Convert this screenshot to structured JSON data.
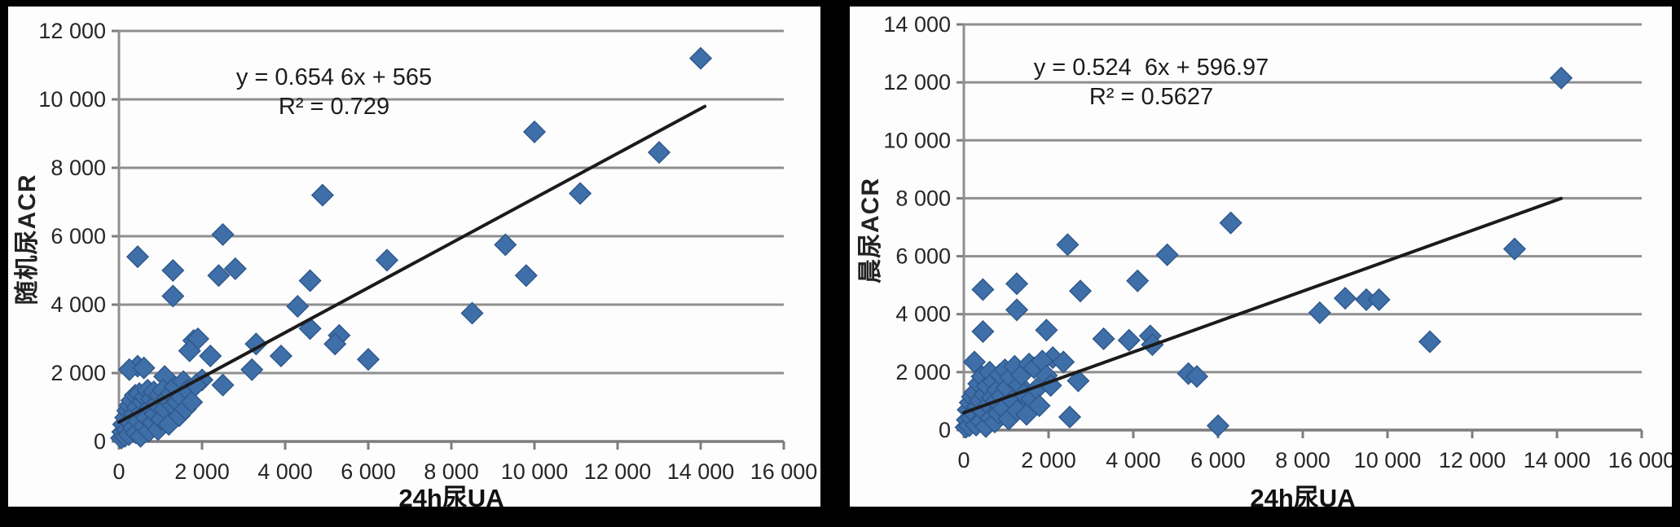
{
  "page": {
    "background_color": "#000000",
    "panel_color": "#fdfdfd"
  },
  "colors": {
    "marker_fill": "#3f6fa9",
    "marker_stroke": "#30598c",
    "gridline": "#8f8f8f",
    "axis_line": "#7d7d7d",
    "trend_line": "#1b1b1b",
    "tick_text": "#262626"
  },
  "chart_data": [
    {
      "id": "left",
      "type": "scatter",
      "title": "",
      "ylabel": "随机尿ACR",
      "xlabel": "24h尿UA",
      "equation": "y = 0.654 6x + 565",
      "r_squared": "R² = 0.729",
      "xlim": [
        0,
        16000
      ],
      "ylim": [
        0,
        12000
      ],
      "xticks": [
        0,
        2000,
        4000,
        6000,
        8000,
        10000,
        12000,
        14000,
        16000
      ],
      "yticks": [
        0,
        2000,
        4000,
        6000,
        8000,
        10000,
        12000
      ],
      "xtick_labels": [
        "0",
        "2 000",
        "4 000",
        "6 000",
        "8 000",
        "10 000",
        "12 000",
        "14 000",
        "16 000"
      ],
      "ytick_labels": [
        "0",
        "2 000",
        "4 000",
        "6 000",
        "8 000",
        "10 000",
        "12 000"
      ],
      "grid": "horizontal",
      "legend": "none",
      "trendline": {
        "x1": 0,
        "y1": 565,
        "x2": 14100,
        "y2": 9795
      },
      "points": [
        [
          14000,
          11200
        ],
        [
          10000,
          9050
        ],
        [
          13000,
          8450
        ],
        [
          11100,
          7250
        ],
        [
          4900,
          7200
        ],
        [
          2500,
          6050
        ],
        [
          9300,
          5750
        ],
        [
          450,
          5400
        ],
        [
          6450,
          5300
        ],
        [
          2800,
          5050
        ],
        [
          1300,
          5000
        ],
        [
          2400,
          4850
        ],
        [
          9800,
          4850
        ],
        [
          4600,
          4700
        ],
        [
          1300,
          4250
        ],
        [
          4300,
          3950
        ],
        [
          8500,
          3750
        ],
        [
          4600,
          3300
        ],
        [
          5300,
          3100
        ],
        [
          5200,
          2850
        ],
        [
          3300,
          2850
        ],
        [
          1800,
          2950
        ],
        [
          1900,
          3000
        ],
        [
          1700,
          2650
        ],
        [
          2200,
          2500
        ],
        [
          3900,
          2500
        ],
        [
          6000,
          2400
        ],
        [
          3200,
          2100
        ],
        [
          450,
          2200
        ],
        [
          250,
          2100
        ],
        [
          600,
          2150
        ],
        [
          1100,
          1900
        ],
        [
          2000,
          1800
        ],
        [
          2500,
          1650
        ],
        [
          60,
          100
        ],
        [
          90,
          280
        ],
        [
          110,
          500
        ],
        [
          140,
          150
        ],
        [
          160,
          700
        ],
        [
          190,
          350
        ],
        [
          210,
          900
        ],
        [
          240,
          200
        ],
        [
          260,
          1050
        ],
        [
          290,
          550
        ],
        [
          310,
          1200
        ],
        [
          340,
          400
        ],
        [
          360,
          800
        ],
        [
          390,
          1350
        ],
        [
          410,
          250
        ],
        [
          440,
          1000
        ],
        [
          470,
          600
        ],
        [
          490,
          1400
        ],
        [
          520,
          150
        ],
        [
          540,
          850
        ],
        [
          570,
          1150
        ],
        [
          600,
          450
        ],
        [
          630,
          1300
        ],
        [
          660,
          700
        ],
        [
          690,
          1500
        ],
        [
          720,
          300
        ],
        [
          750,
          1000
        ],
        [
          780,
          1250
        ],
        [
          810,
          550
        ],
        [
          840,
          1450
        ],
        [
          870,
          800
        ],
        [
          900,
          1100
        ],
        [
          940,
          350
        ],
        [
          980,
          1350
        ],
        [
          1020,
          650
        ],
        [
          1060,
          1500
        ],
        [
          1100,
          950
        ],
        [
          1150,
          1250
        ],
        [
          1200,
          500
        ],
        [
          1250,
          1400
        ],
        [
          1300,
          1050
        ],
        [
          1350,
          1600
        ],
        [
          1400,
          1150
        ],
        [
          1450,
          750
        ],
        [
          1500,
          1300
        ],
        [
          1550,
          1750
        ],
        [
          1600,
          950
        ],
        [
          1650,
          1500
        ],
        [
          1750,
          1150
        ],
        [
          1850,
          1650
        ]
      ]
    },
    {
      "id": "right",
      "type": "scatter",
      "title": "",
      "ylabel": "晨尿ACR",
      "xlabel": "24h尿UA",
      "equation": "y = 0.524  6x + 596.97",
      "r_squared": "R² = 0.5627",
      "xlim": [
        0,
        16000
      ],
      "ylim": [
        0,
        14000
      ],
      "xticks": [
        0,
        2000,
        4000,
        6000,
        8000,
        10000,
        12000,
        14000,
        16000
      ],
      "yticks": [
        0,
        2000,
        4000,
        6000,
        8000,
        10000,
        12000,
        14000
      ],
      "xtick_labels": [
        "0",
        "2 000",
        "4 000",
        "6 000",
        "8 000",
        "10 000",
        "12 000",
        "14 000",
        "16 000"
      ],
      "ytick_labels": [
        "0",
        "2 000",
        "4 000",
        "6 000",
        "8 000",
        "10 000",
        "12 000",
        "14 000"
      ],
      "grid": "horizontal",
      "legend": "none",
      "trendline": {
        "x1": 0,
        "y1": 597,
        "x2": 14100,
        "y2": 7994
      },
      "points": [
        [
          14100,
          12150
        ],
        [
          6300,
          7150
        ],
        [
          2450,
          6400
        ],
        [
          4800,
          6050
        ],
        [
          13000,
          6250
        ],
        [
          4100,
          5150
        ],
        [
          1250,
          5050
        ],
        [
          450,
          4850
        ],
        [
          2750,
          4800
        ],
        [
          9000,
          4550
        ],
        [
          9500,
          4500
        ],
        [
          9800,
          4500
        ],
        [
          1250,
          4150
        ],
        [
          8400,
          4050
        ],
        [
          450,
          3400
        ],
        [
          1950,
          3450
        ],
        [
          3300,
          3150
        ],
        [
          4400,
          3250
        ],
        [
          4450,
          2950
        ],
        [
          3900,
          3100
        ],
        [
          11000,
          3050
        ],
        [
          2100,
          2500
        ],
        [
          2350,
          2350
        ],
        [
          250,
          2350
        ],
        [
          5300,
          1950
        ],
        [
          5500,
          1850
        ],
        [
          6000,
          150
        ],
        [
          2500,
          450
        ],
        [
          2700,
          1700
        ],
        [
          50,
          100
        ],
        [
          80,
          350
        ],
        [
          100,
          700
        ],
        [
          130,
          150
        ],
        [
          150,
          950
        ],
        [
          180,
          420
        ],
        [
          200,
          1150
        ],
        [
          230,
          600
        ],
        [
          260,
          1300
        ],
        [
          290,
          170
        ],
        [
          320,
          820
        ],
        [
          350,
          1600
        ],
        [
          380,
          1020
        ],
        [
          410,
          300
        ],
        [
          430,
          1850
        ],
        [
          460,
          660
        ],
        [
          490,
          1230
        ],
        [
          520,
          120
        ],
        [
          550,
          1520
        ],
        [
          580,
          870
        ],
        [
          610,
          2000
        ],
        [
          640,
          420
        ],
        [
          670,
          1120
        ],
        [
          700,
          1680
        ],
        [
          730,
          280
        ],
        [
          760,
          1000
        ],
        [
          790,
          1380
        ],
        [
          820,
          580
        ],
        [
          850,
          1920
        ],
        [
          890,
          1180
        ],
        [
          930,
          740
        ],
        [
          970,
          2080
        ],
        [
          1010,
          1460
        ],
        [
          1060,
          380
        ],
        [
          1100,
          1820
        ],
        [
          1150,
          1020
        ],
        [
          1200,
          2200
        ],
        [
          1260,
          680
        ],
        [
          1310,
          1560
        ],
        [
          1360,
          1900
        ],
        [
          1420,
          1240
        ],
        [
          1480,
          540
        ],
        [
          1540,
          2280
        ],
        [
          1600,
          1080
        ],
        [
          1660,
          2150
        ],
        [
          1720,
          1420
        ],
        [
          1780,
          840
        ],
        [
          1850,
          2380
        ],
        [
          1950,
          1880
        ],
        [
          2050,
          1540
        ]
      ]
    }
  ]
}
